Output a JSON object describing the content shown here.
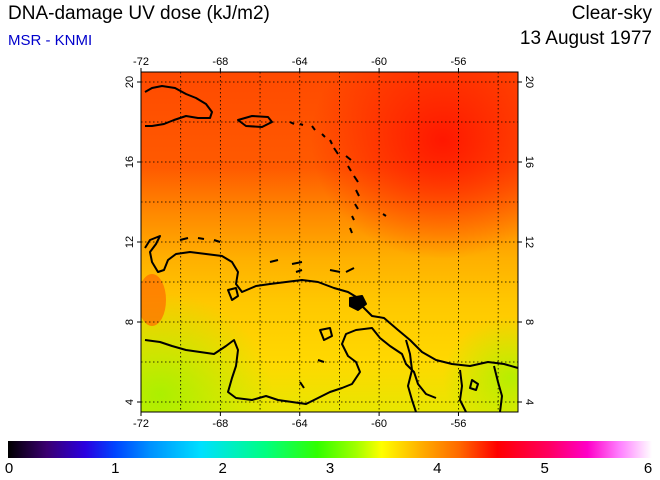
{
  "header": {
    "title": "DNA-damage UV dose (kJ/m2)",
    "subtitle": "MSR - KNMI",
    "mode": "Clear-sky",
    "date": "13 August 1977"
  },
  "map": {
    "region": "Caribbean / northern South America",
    "lon_range": [
      -72,
      -53
    ],
    "lat_range": [
      3.5,
      20.5
    ],
    "lon_ticks": [
      -72,
      -68,
      -64,
      -60,
      -56
    ],
    "lat_ticks": [
      4,
      8,
      12,
      16,
      20
    ],
    "grid": true,
    "colors": {
      "high": "#ff1a00",
      "mid_high": "#ff5a00",
      "mid": "#ff9c00",
      "low": "#ffd200",
      "lowest": "#b4f000"
    }
  },
  "colorbar": {
    "min": 0,
    "max": 6,
    "labels": [
      "0",
      "1",
      "2",
      "3",
      "4",
      "5",
      "6"
    ]
  }
}
